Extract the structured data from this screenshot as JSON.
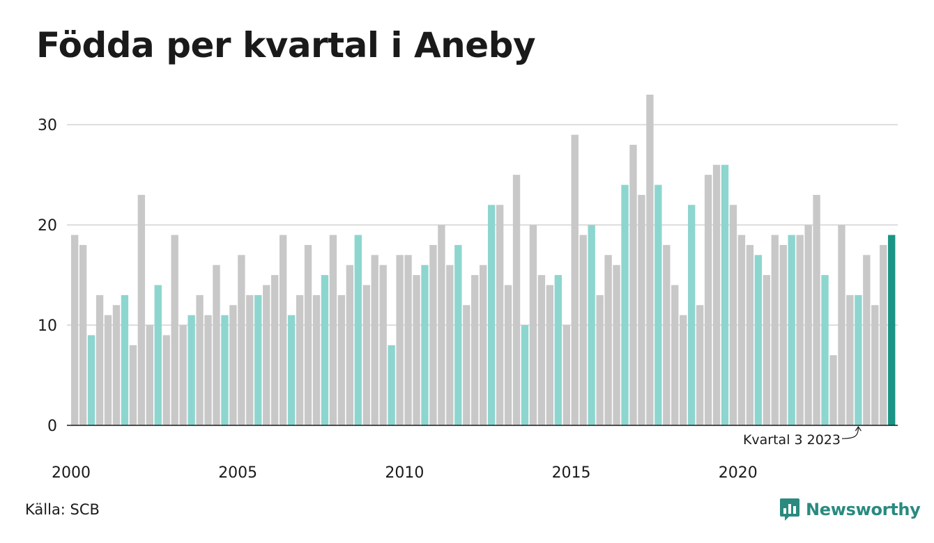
{
  "title": "Födda per kvartal i Aneby",
  "source": "Källa: SCB",
  "brand": {
    "name": "Newsworthy",
    "icon": "newsworthy-chat-bars-icon",
    "color": "#2a8a7f"
  },
  "colors": {
    "default": "#c8c8c8",
    "quarter3": "#8dd6cf",
    "highlight": "#1a9485",
    "grid": "#dddddd",
    "axis": "#1a1a1a"
  },
  "chart_data": {
    "type": "bar",
    "title": "Födda per kvartal i Aneby",
    "xlabel": "",
    "ylabel": "",
    "ylim": [
      0,
      33
    ],
    "yticks": [
      0,
      10,
      20,
      30
    ],
    "xtick_labels": [
      "2000",
      "2005",
      "2010",
      "2015",
      "2020"
    ],
    "grid": true,
    "start": "2000 Q1",
    "end": "2024 Q3",
    "highlight": "Kvartal 3 2024",
    "annotation": {
      "text": "Kvartal 3 2023",
      "target": "2023 Q3"
    },
    "values": [
      19,
      18,
      9,
      13,
      11,
      12,
      13,
      8,
      23,
      10,
      14,
      9,
      19,
      10,
      11,
      13,
      11,
      16,
      11,
      12,
      17,
      13,
      13,
      14,
      15,
      19,
      11,
      13,
      18,
      13,
      15,
      19,
      13,
      16,
      19,
      14,
      17,
      16,
      8,
      17,
      17,
      15,
      16,
      18,
      20,
      16,
      18,
      12,
      15,
      16,
      22,
      22,
      14,
      25,
      10,
      20,
      15,
      14,
      15,
      10,
      29,
      19,
      20,
      13,
      17,
      16,
      24,
      28,
      23,
      33,
      24,
      18,
      14,
      11,
      22,
      12,
      25,
      26,
      26,
      22,
      19,
      18,
      17,
      15,
      19,
      18,
      19,
      19,
      20,
      23,
      15,
      7,
      20,
      13,
      13,
      17,
      12,
      18,
      19
    ]
  }
}
